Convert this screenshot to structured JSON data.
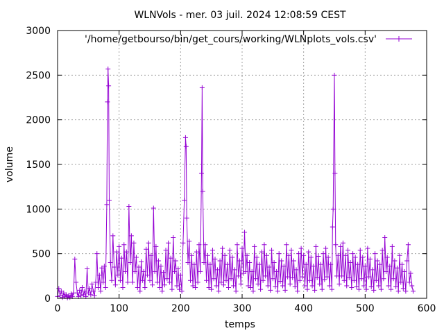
{
  "chart_data": {
    "type": "line",
    "title": "WLNVols - mer. 03 juil. 2024 12:08:59 CEST",
    "xlabel": "temps",
    "ylabel": "volume",
    "xlim": [
      0,
      600
    ],
    "ylim": [
      0,
      3000
    ],
    "x_ticks": [
      0,
      100,
      200,
      300,
      400,
      500,
      600
    ],
    "y_ticks": [
      0,
      500,
      1000,
      1500,
      2000,
      2500,
      3000
    ],
    "x_tick_labels": [
      "0",
      "100",
      "200",
      "300",
      "400",
      "500",
      "600"
    ],
    "y_tick_labels": [
      "0",
      "500",
      "1000",
      "1500",
      "2000",
      "2500",
      "3000"
    ],
    "grid": true,
    "legend_position": "top-right",
    "series": [
      {
        "name": "'/home/getbourso/bin/get_cours/working/WLNplots_vols.csv'",
        "color": "#9400d3",
        "marker": "plus",
        "points": [
          [
            0,
            20
          ],
          [
            2,
            110
          ],
          [
            4,
            30
          ],
          [
            6,
            80
          ],
          [
            8,
            10
          ],
          [
            10,
            60
          ],
          [
            12,
            20
          ],
          [
            14,
            40
          ],
          [
            16,
            5
          ],
          [
            18,
            30
          ],
          [
            20,
            10
          ],
          [
            22,
            50
          ],
          [
            24,
            20
          ],
          [
            26,
            60
          ],
          [
            28,
            440
          ],
          [
            30,
            180
          ],
          [
            32,
            60
          ],
          [
            34,
            20
          ],
          [
            36,
            90
          ],
          [
            38,
            30
          ],
          [
            40,
            120
          ],
          [
            42,
            40
          ],
          [
            44,
            80
          ],
          [
            46,
            20
          ],
          [
            48,
            330
          ],
          [
            50,
            60
          ],
          [
            52,
            110
          ],
          [
            54,
            40
          ],
          [
            56,
            160
          ],
          [
            58,
            80
          ],
          [
            60,
            30
          ],
          [
            62,
            180
          ],
          [
            64,
            500
          ],
          [
            66,
            120
          ],
          [
            68,
            260
          ],
          [
            70,
            80
          ],
          [
            72,
            340
          ],
          [
            74,
            180
          ],
          [
            76,
            360
          ],
          [
            78,
            120
          ],
          [
            80,
            1050
          ],
          [
            81,
            2200
          ],
          [
            82,
            2570
          ],
          [
            83,
            2380
          ],
          [
            84,
            1100
          ],
          [
            86,
            400
          ],
          [
            88,
            200
          ],
          [
            90,
            700
          ],
          [
            92,
            350
          ],
          [
            94,
            150
          ],
          [
            96,
            520
          ],
          [
            98,
            260
          ],
          [
            100,
            580
          ],
          [
            102,
            200
          ],
          [
            104,
            450
          ],
          [
            106,
            120
          ],
          [
            108,
            600
          ],
          [
            110,
            300
          ],
          [
            112,
            520
          ],
          [
            114,
            180
          ],
          [
            116,
            1030
          ],
          [
            118,
            400
          ],
          [
            120,
            700
          ],
          [
            122,
            180
          ],
          [
            124,
            620
          ],
          [
            126,
            300
          ],
          [
            128,
            460
          ],
          [
            130,
            120
          ],
          [
            132,
            350
          ],
          [
            134,
            80
          ],
          [
            136,
            410
          ],
          [
            138,
            200
          ],
          [
            140,
            300
          ],
          [
            142,
            120
          ],
          [
            144,
            550
          ],
          [
            146,
            260
          ],
          [
            148,
            620
          ],
          [
            150,
            200
          ],
          [
            152,
            480
          ],
          [
            154,
            150
          ],
          [
            156,
            1010
          ],
          [
            158,
            300
          ],
          [
            160,
            580
          ],
          [
            162,
            180
          ],
          [
            164,
            420
          ],
          [
            166,
            120
          ],
          [
            168,
            360
          ],
          [
            170,
            80
          ],
          [
            172,
            290
          ],
          [
            174,
            150
          ],
          [
            176,
            540
          ],
          [
            178,
            220
          ],
          [
            180,
            620
          ],
          [
            182,
            180
          ],
          [
            184,
            450
          ],
          [
            186,
            100
          ],
          [
            188,
            680
          ],
          [
            190,
            300
          ],
          [
            192,
            420
          ],
          [
            194,
            140
          ],
          [
            196,
            330
          ],
          [
            198,
            100
          ],
          [
            200,
            260
          ],
          [
            202,
            80
          ],
          [
            204,
            620
          ],
          [
            206,
            1100
          ],
          [
            208,
            1800
          ],
          [
            209,
            1700
          ],
          [
            210,
            900
          ],
          [
            212,
            400
          ],
          [
            214,
            640
          ],
          [
            216,
            200
          ],
          [
            218,
            480
          ],
          [
            220,
            140
          ],
          [
            222,
            380
          ],
          [
            224,
            120
          ],
          [
            226,
            520
          ],
          [
            228,
            180
          ],
          [
            230,
            600
          ],
          [
            232,
            300
          ],
          [
            234,
            1400
          ],
          [
            235,
            2360
          ],
          [
            236,
            1200
          ],
          [
            238,
            400
          ],
          [
            240,
            600
          ],
          [
            242,
            200
          ],
          [
            244,
            480
          ],
          [
            246,
            120
          ],
          [
            248,
            380
          ],
          [
            250,
            100
          ],
          [
            252,
            540
          ],
          [
            254,
            220
          ],
          [
            256,
            440
          ],
          [
            258,
            140
          ],
          [
            260,
            320
          ],
          [
            262,
            80
          ],
          [
            264,
            420
          ],
          [
            266,
            180
          ],
          [
            268,
            560
          ],
          [
            270,
            150
          ],
          [
            272,
            480
          ],
          [
            274,
            200
          ],
          [
            276,
            380
          ],
          [
            278,
            120
          ],
          [
            280,
            540
          ],
          [
            282,
            220
          ],
          [
            284,
            460
          ],
          [
            286,
            140
          ],
          [
            288,
            320
          ],
          [
            290,
            80
          ],
          [
            292,
            600
          ],
          [
            294,
            250
          ],
          [
            296,
            420
          ],
          [
            298,
            160
          ],
          [
            300,
            560
          ],
          [
            302,
            280
          ],
          [
            304,
            740
          ],
          [
            306,
            300
          ],
          [
            308,
            480
          ],
          [
            310,
            140
          ],
          [
            312,
            400
          ],
          [
            314,
            120
          ],
          [
            316,
            300
          ],
          [
            318,
            80
          ],
          [
            320,
            580
          ],
          [
            322,
            220
          ],
          [
            324,
            460
          ],
          [
            326,
            160
          ],
          [
            328,
            380
          ],
          [
            330,
            100
          ],
          [
            332,
            520
          ],
          [
            334,
            200
          ],
          [
            336,
            600
          ],
          [
            338,
            250
          ],
          [
            340,
            480
          ],
          [
            342,
            140
          ],
          [
            344,
            350
          ],
          [
            346,
            90
          ],
          [
            348,
            540
          ],
          [
            350,
            220
          ],
          [
            352,
            400
          ],
          [
            354,
            130
          ],
          [
            356,
            300
          ],
          [
            358,
            80
          ],
          [
            360,
            500
          ],
          [
            362,
            190
          ],
          [
            364,
            420
          ],
          [
            366,
            140
          ],
          [
            368,
            360
          ],
          [
            370,
            90
          ],
          [
            372,
            600
          ],
          [
            374,
            240
          ],
          [
            376,
            480
          ],
          [
            378,
            160
          ],
          [
            380,
            540
          ],
          [
            382,
            230
          ],
          [
            384,
            420
          ],
          [
            386,
            130
          ],
          [
            388,
            320
          ],
          [
            390,
            80
          ],
          [
            392,
            500
          ],
          [
            394,
            200
          ],
          [
            396,
            560
          ],
          [
            398,
            240
          ],
          [
            400,
            480
          ],
          [
            402,
            140
          ],
          [
            404,
            380
          ],
          [
            406,
            100
          ],
          [
            408,
            520
          ],
          [
            410,
            200
          ],
          [
            412,
            460
          ],
          [
            414,
            140
          ],
          [
            416,
            360
          ],
          [
            418,
            90
          ],
          [
            420,
            580
          ],
          [
            422,
            230
          ],
          [
            424,
            470
          ],
          [
            426,
            160
          ],
          [
            428,
            380
          ],
          [
            430,
            100
          ],
          [
            432,
            500
          ],
          [
            434,
            210
          ],
          [
            436,
            560
          ],
          [
            438,
            240
          ],
          [
            440,
            460
          ],
          [
            442,
            140
          ],
          [
            444,
            380
          ],
          [
            446,
            100
          ],
          [
            447,
            800
          ],
          [
            448,
            1000
          ],
          [
            450,
            2500
          ],
          [
            451,
            1400
          ],
          [
            452,
            600
          ],
          [
            454,
            250
          ],
          [
            456,
            480
          ],
          [
            458,
            160
          ],
          [
            460,
            580
          ],
          [
            462,
            250
          ],
          [
            464,
            620
          ],
          [
            466,
            200
          ],
          [
            468,
            480
          ],
          [
            470,
            140
          ],
          [
            472,
            540
          ],
          [
            474,
            230
          ],
          [
            476,
            400
          ],
          [
            478,
            120
          ],
          [
            480,
            500
          ],
          [
            482,
            200
          ],
          [
            484,
            460
          ],
          [
            486,
            130
          ],
          [
            488,
            380
          ],
          [
            490,
            100
          ],
          [
            492,
            540
          ],
          [
            494,
            220
          ],
          [
            496,
            460
          ],
          [
            498,
            140
          ],
          [
            500,
            360
          ],
          [
            502,
            100
          ],
          [
            504,
            560
          ],
          [
            506,
            240
          ],
          [
            508,
            440
          ],
          [
            510,
            130
          ],
          [
            512,
            320
          ],
          [
            514,
            90
          ],
          [
            516,
            500
          ],
          [
            518,
            200
          ],
          [
            520,
            420
          ],
          [
            522,
            140
          ],
          [
            524,
            380
          ],
          [
            526,
            100
          ],
          [
            528,
            540
          ],
          [
            530,
            220
          ],
          [
            532,
            680
          ],
          [
            534,
            300
          ],
          [
            536,
            460
          ],
          [
            538,
            140
          ],
          [
            540,
            360
          ],
          [
            542,
            100
          ],
          [
            544,
            580
          ],
          [
            546,
            220
          ],
          [
            548,
            420
          ],
          [
            550,
            130
          ],
          [
            552,
            340
          ],
          [
            554,
            80
          ],
          [
            556,
            480
          ],
          [
            558,
            180
          ],
          [
            560,
            380
          ],
          [
            562,
            110
          ],
          [
            564,
            300
          ],
          [
            566,
            80
          ],
          [
            568,
            420
          ],
          [
            570,
            600
          ],
          [
            572,
            180
          ],
          [
            574,
            280
          ],
          [
            576,
            140
          ],
          [
            578,
            80
          ]
        ]
      }
    ]
  }
}
